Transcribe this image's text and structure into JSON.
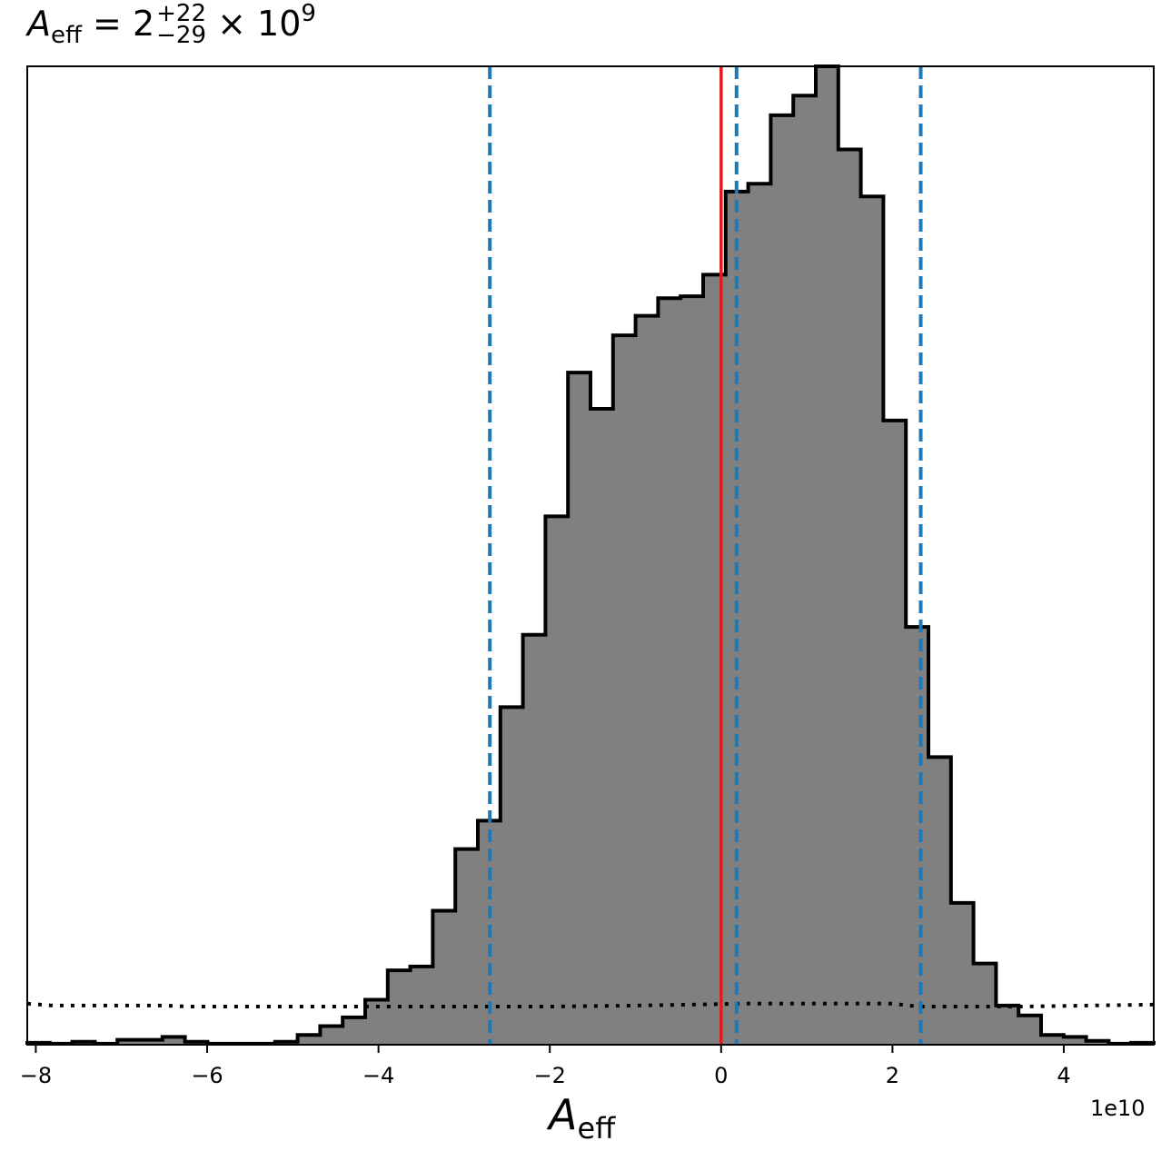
{
  "chart_data": {
    "type": "histogram",
    "title": {
      "symbol": "A",
      "subscript": "eff",
      "equals": "=",
      "median": "2",
      "upper": "+22",
      "lower": "−29",
      "times": "×",
      "base": "10",
      "exponent": "9"
    },
    "xlabel": {
      "symbol": "A",
      "subscript": "eff"
    },
    "x_offset_label": "1e10",
    "xlim": [
      -8.1,
      5.05
    ],
    "ylim": [
      0,
      1.0
    ],
    "xticks": [
      -8,
      -6,
      -4,
      -2,
      0,
      2,
      4
    ],
    "xtick_labels": [
      "−8",
      "−6",
      "−4",
      "−2",
      "0",
      "2",
      "4"
    ],
    "bin_edges": [
      -8.1,
      -7.837,
      -7.574,
      -7.311,
      -7.048,
      -6.785,
      -6.522,
      -6.259,
      -5.996,
      -5.733,
      -5.47,
      -5.207,
      -4.944,
      -4.681,
      -4.418,
      -4.155,
      -3.892,
      -3.629,
      -3.366,
      -3.103,
      -2.84,
      -2.577,
      -2.314,
      -2.051,
      -1.788,
      -1.525,
      -1.262,
      -0.999,
      -0.736,
      -0.473,
      -0.21,
      0.053,
      0.316,
      0.579,
      0.842,
      1.105,
      1.368,
      1.631,
      1.894,
      2.157,
      2.42,
      2.683,
      2.946,
      3.209,
      3.472,
      3.735,
      3.998,
      4.261,
      4.524,
      4.787,
      5.05
    ],
    "counts": [
      0.002,
      0.001,
      0.003,
      0.001,
      0.005,
      0.005,
      0.008,
      0.003,
      0.001,
      0.001,
      0.001,
      0.003,
      0.01,
      0.019,
      0.028,
      0.046,
      0.076,
      0.08,
      0.137,
      0.2,
      0.229,
      0.345,
      0.419,
      0.54,
      0.687,
      0.65,
      0.725,
      0.745,
      0.763,
      0.765,
      0.787,
      0.872,
      0.88,
      0.95,
      0.97,
      1.0,
      0.915,
      0.867,
      0.638,
      0.427,
      0.294,
      0.145,
      0.083,
      0.04,
      0.03,
      0.01,
      0.008,
      0.004,
      0.001,
      0.002
    ],
    "fill_color": "#808080",
    "edge_color": "#000000",
    "prior_line": {
      "style": "dotted",
      "x": [
        -8.1,
        -7.8,
        -6.5,
        -6.2,
        -4.2,
        -2.0,
        -1.0,
        0.3,
        2.0,
        2.3,
        3.5,
        5.05
      ],
      "y": [
        0.042,
        0.04,
        0.04,
        0.039,
        0.039,
        0.039,
        0.04,
        0.042,
        0.042,
        0.039,
        0.039,
        0.041
      ]
    },
    "true_value": {
      "x": 0.0,
      "color": "#e41a1c"
    },
    "quantile_lines": {
      "x": [
        -2.7,
        0.18,
        2.33
      ],
      "color": "#1f77b4",
      "style": "dashed"
    }
  }
}
